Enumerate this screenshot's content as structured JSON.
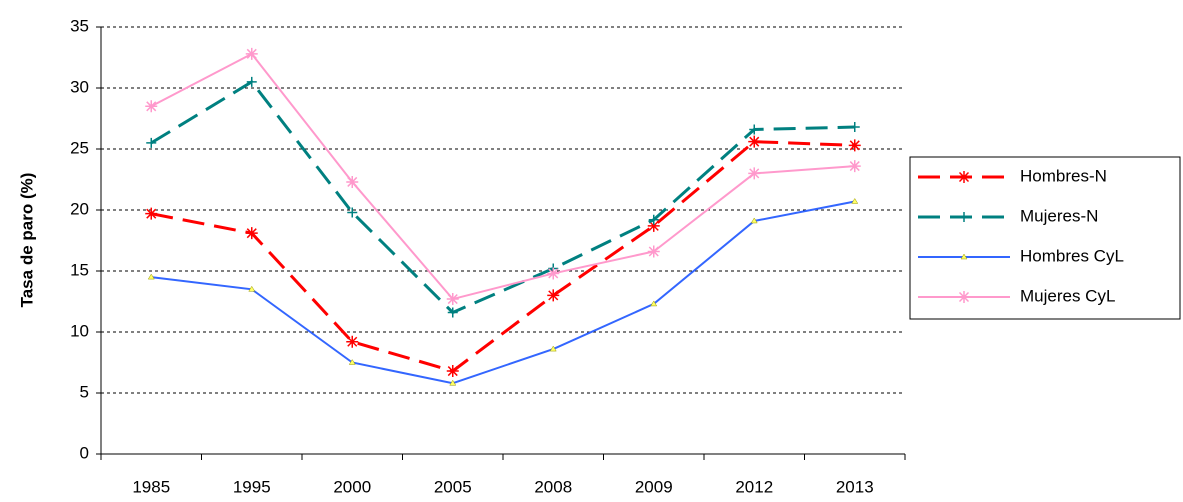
{
  "chart_data": {
    "type": "line",
    "y_label": "Tasa de paro (%)",
    "categories": [
      "1985",
      "1995",
      "2000",
      "2005",
      "2008",
      "2009",
      "2012",
      "2013"
    ],
    "series": [
      {
        "name": "Hombres-N",
        "color": "#ff0000",
        "dashed": true,
        "marker": "star",
        "values": [
          19.7,
          18.1,
          9.2,
          6.8,
          13.0,
          18.7,
          25.6,
          25.3
        ]
      },
      {
        "name": "Mujeres-N",
        "color": "#008080",
        "dashed": true,
        "marker": "plus",
        "values": [
          25.5,
          30.5,
          19.8,
          11.6,
          15.2,
          19.2,
          26.6,
          26.8
        ]
      },
      {
        "name": "Hombres CyL",
        "color": "#3366ff",
        "dashed": false,
        "marker": "triangle",
        "values": [
          14.5,
          13.5,
          7.5,
          5.8,
          8.6,
          12.3,
          19.1,
          20.7
        ]
      },
      {
        "name": "Mujeres CyL",
        "color": "#ff99cc",
        "dashed": false,
        "marker": "star",
        "values": [
          28.5,
          32.8,
          22.3,
          12.7,
          14.8,
          16.6,
          23.0,
          23.6
        ]
      }
    ],
    "ylim": [
      0,
      35
    ],
    "yticks": [
      0,
      5,
      10,
      15,
      20,
      25,
      30,
      35
    ],
    "grid": true,
    "legend": "right"
  }
}
